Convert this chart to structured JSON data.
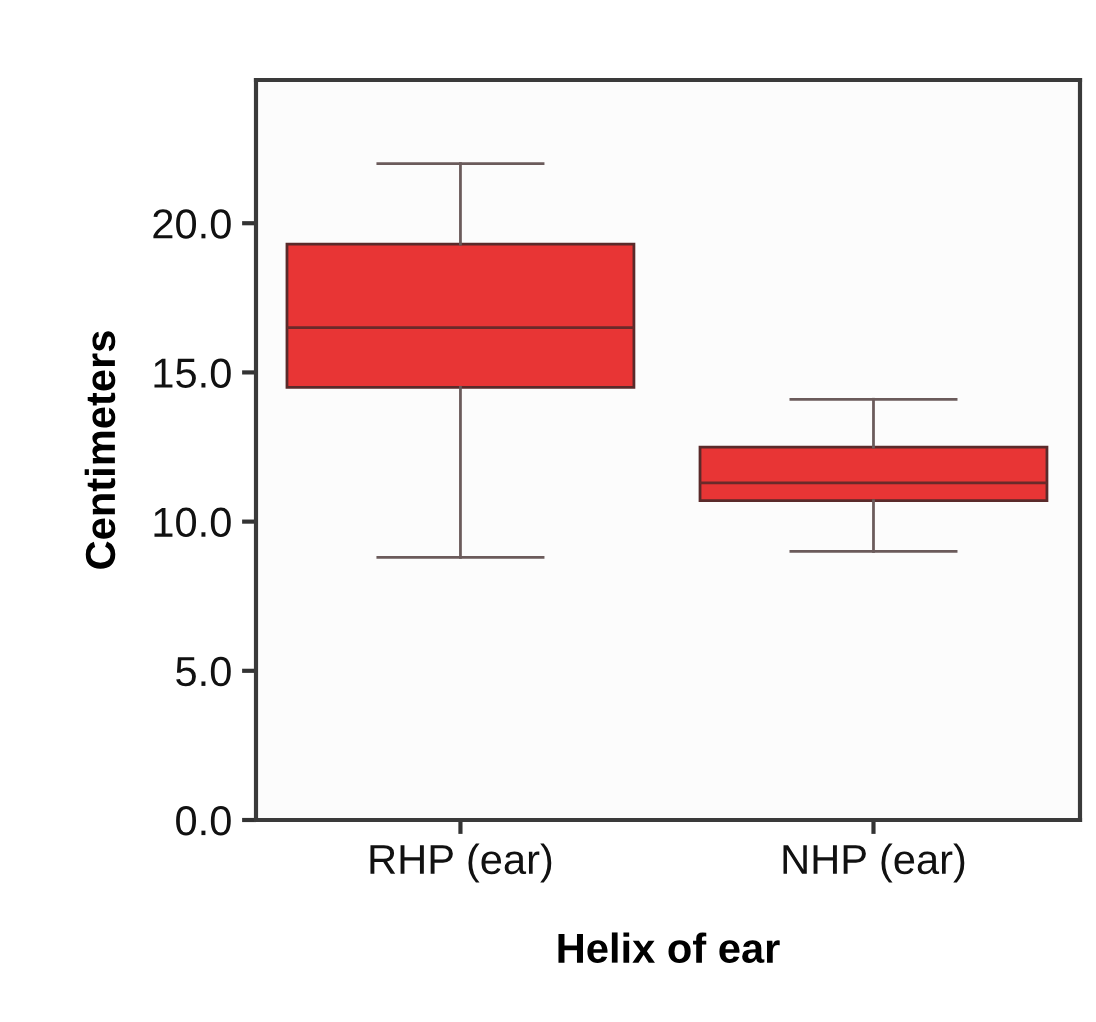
{
  "chart_data": {
    "type": "box",
    "xlabel": "Helix of ear",
    "ylabel": "Centimeters",
    "categories": [
      "RHP (ear)",
      "NHP (ear)"
    ],
    "boxes": [
      {
        "low": 8.8,
        "q1": 14.5,
        "median": 16.5,
        "q3": 19.3,
        "high": 22.0
      },
      {
        "low": 9.0,
        "q1": 10.7,
        "median": 11.3,
        "q3": 12.5,
        "high": 14.1
      }
    ],
    "color": "#e83535",
    "ylim": [
      0,
      24.8
    ],
    "yticks": [
      {
        "value": 0,
        "label": "0.0"
      },
      {
        "value": 5,
        "label": "5.0"
      },
      {
        "value": 10,
        "label": "10.0"
      },
      {
        "value": 15,
        "label": "15.0"
      },
      {
        "value": 20,
        "label": "20.0"
      }
    ],
    "grid": false,
    "legend": false
  }
}
